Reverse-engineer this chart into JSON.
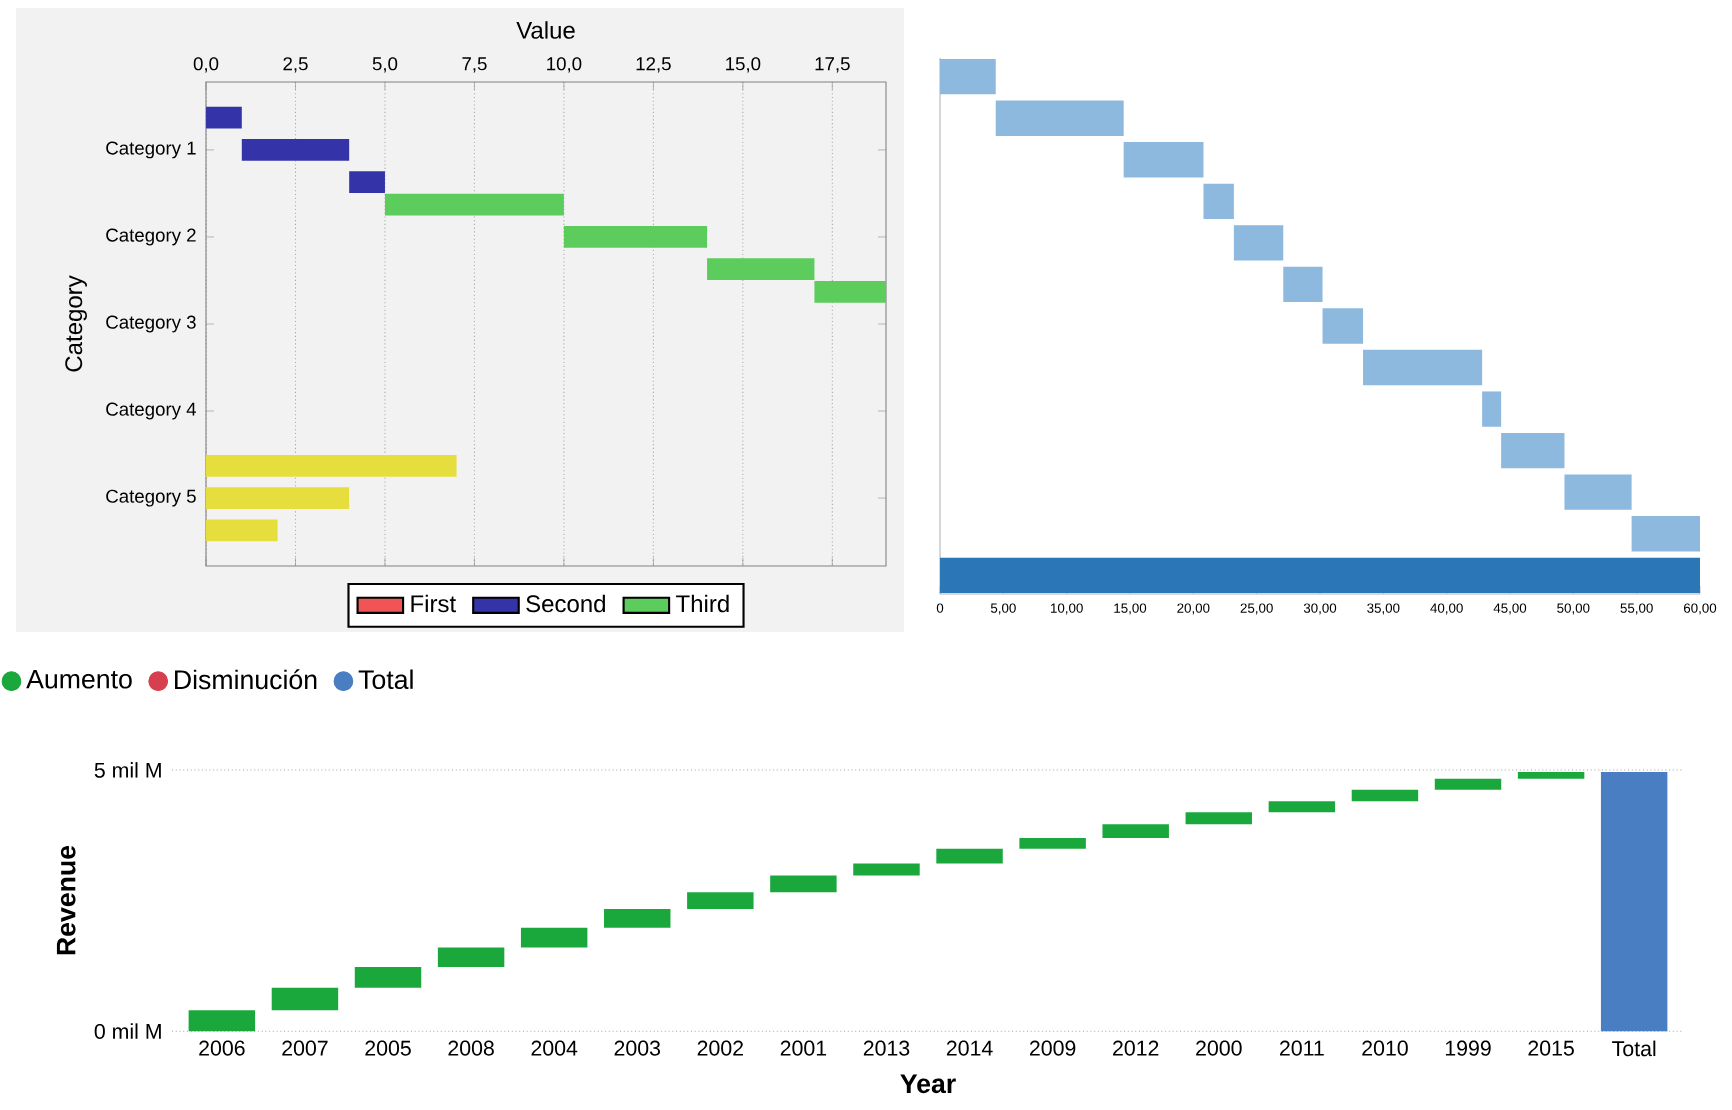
{
  "chart_data": [
    {
      "type": "bar",
      "orientation": "horizontal",
      "xlabel": "Value",
      "ylabel": "Category",
      "categories": [
        "Category 1",
        "Category 2",
        "Category 3",
        "Category 4",
        "Category 5"
      ],
      "series": [
        {
          "name": "First",
          "color": "#f05454",
          "values": [
            null,
            null,
            null,
            null,
            null
          ]
        },
        {
          "values": [
            1,
            5,
            2,
            null,
            7
          ],
          "base": [
            0,
            5,
            17,
            null,
            0
          ],
          "colors": [
            "#3434a8",
            "#5ccc5c",
            "#5ccc5c",
            null,
            "#e6de3c"
          ]
        },
        {
          "name": "Second",
          "color": "#3434a8",
          "values": [
            3,
            4,
            null,
            null,
            4
          ],
          "base": [
            1,
            10,
            null,
            null,
            0
          ],
          "colors": [
            "#3434a8",
            "#5ccc5c",
            null,
            null,
            "#e6de3c"
          ]
        },
        {
          "name": "Third",
          "color": "#5ccc5c",
          "values": [
            1,
            3,
            null,
            null,
            2
          ],
          "base": [
            4,
            14,
            null,
            null,
            0
          ],
          "colors": [
            "#3434a8",
            "#5ccc5c",
            null,
            null,
            "#e6de3c"
          ]
        }
      ],
      "xlim": [
        0,
        19
      ],
      "xticks": [
        {
          "value": 0,
          "label": "0,0"
        },
        {
          "value": 2.5,
          "label": "2,5"
        },
        {
          "value": 5,
          "label": "5,0"
        },
        {
          "value": 7.5,
          "label": "7,5"
        },
        {
          "value": 10,
          "label": "10,0"
        },
        {
          "value": 12.5,
          "label": "12,5"
        },
        {
          "value": 15,
          "label": "15,0"
        },
        {
          "value": 17.5,
          "label": "17,5"
        }
      ],
      "grid": "x",
      "legend": "bottom"
    },
    {
      "type": "bar",
      "orientation": "horizontal",
      "categories": [
        null,
        null,
        null,
        null,
        null,
        null,
        null,
        null,
        null,
        null,
        null,
        null,
        null
      ],
      "values": [
        4.4,
        10.1,
        6.3,
        2.4,
        3.9,
        3.1,
        3.2,
        9.4,
        1.5,
        5.0,
        5.3,
        5.4,
        60
      ],
      "base": [
        0,
        4.4,
        14.5,
        20.8,
        23.2,
        27.1,
        30.2,
        33.4,
        42.8,
        44.3,
        49.3,
        54.6,
        0
      ],
      "xlim": [
        0,
        60
      ],
      "xticks": [
        0,
        {
          "value": 5,
          "label": "5,00"
        },
        {
          "value": 10,
          "label": "10,00"
        },
        {
          "value": 15,
          "label": "15,00"
        },
        {
          "value": 20,
          "label": "20,00"
        },
        {
          "value": 25,
          "label": "25,00"
        },
        {
          "value": 30,
          "label": "30,00"
        },
        {
          "value": 35,
          "label": "35,00"
        },
        {
          "value": 40,
          "label": "40,00"
        },
        {
          "value": 45,
          "label": "45,00"
        },
        {
          "value": 50,
          "label": "50,00"
        },
        {
          "value": 55,
          "label": "55,00"
        },
        {
          "value": 60,
          "label": "60,00"
        }
      ],
      "colors": [
        "#8cb9dd",
        "#8cb9dd",
        "#8cb9dd",
        "#8cb9dd",
        "#8cb9dd",
        "#8cb9dd",
        "#8cb9dd",
        "#8cb9dd",
        "#8cb9dd",
        "#8cb9dd",
        "#8cb9dd",
        "#8cb9dd",
        "#2a76b6"
      ]
    },
    {
      "type": "bar",
      "xlabel": "Year",
      "ylabel": "Revenue",
      "categories": [
        "2006",
        "2007",
        "2005",
        "2008",
        "2004",
        "2003",
        "2002",
        "2001",
        "2013",
        "2014",
        "2009",
        "2012",
        "2000",
        "2011",
        "2010",
        "1999",
        "2015",
        "Total"
      ],
      "series": [
        {
          "name": "Aumento",
          "color": "#1aa83c",
          "values": [
            0.4,
            0.43,
            0.4,
            0.37,
            0.38,
            0.36,
            0.32,
            0.32,
            0.23,
            0.28,
            0.21,
            0.26,
            0.23,
            0.21,
            0.22,
            0.21,
            0.13,
            null
          ],
          "base": [
            0,
            0.4,
            0.83,
            1.23,
            1.6,
            1.98,
            2.34,
            2.66,
            2.98,
            3.21,
            3.49,
            3.7,
            3.96,
            4.19,
            4.4,
            4.62,
            4.83,
            null
          ]
        },
        {
          "name": "Disminución",
          "color": "#d6404e",
          "values": [
            null,
            null,
            null,
            null,
            null,
            null,
            null,
            null,
            null,
            null,
            null,
            null,
            null,
            null,
            null,
            null,
            null,
            null
          ]
        },
        {
          "name": "Total",
          "color": "#4a7ec2",
          "values": [
            null,
            null,
            null,
            null,
            null,
            null,
            null,
            null,
            null,
            null,
            null,
            null,
            null,
            null,
            null,
            null,
            null,
            4.96
          ],
          "base": [
            null,
            null,
            null,
            null,
            null,
            null,
            null,
            null,
            null,
            null,
            null,
            null,
            null,
            null,
            null,
            null,
            null,
            0
          ]
        }
      ],
      "ylim": [
        0,
        5
      ],
      "yticks": [
        {
          "value": 0,
          "label": "0 mil M"
        },
        {
          "value": 5,
          "label": "5 mil M"
        }
      ],
      "grid": "y",
      "legend": "top left"
    }
  ]
}
